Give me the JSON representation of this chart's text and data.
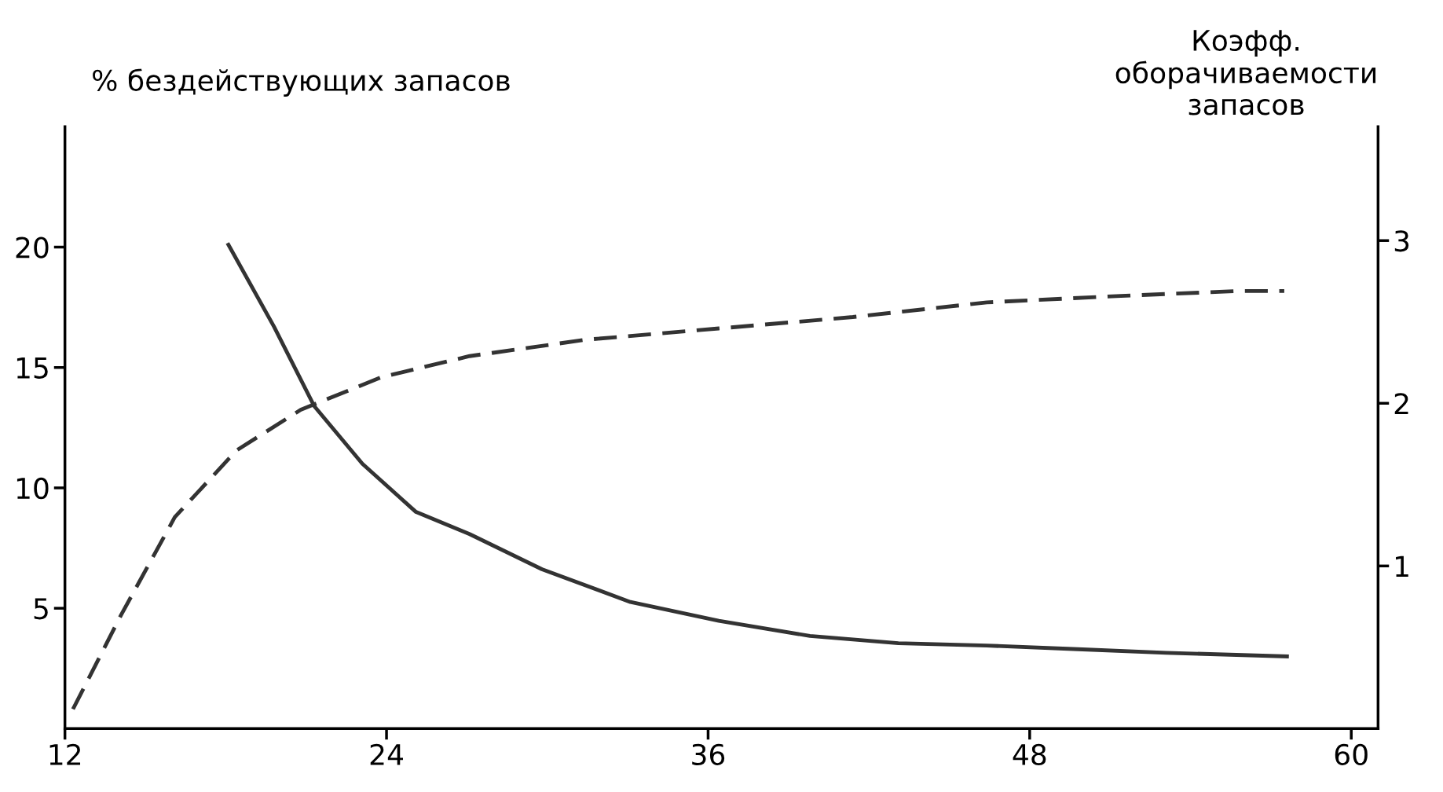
{
  "chart_data": {
    "type": "line",
    "ylabel": "% бездействующих запасов",
    "y2label": "Коэфф.\nоборачиваемости\nзапасов",
    "xlim": [
      12,
      61
    ],
    "xticks": [
      12,
      24,
      36,
      48,
      60
    ],
    "ylim": [
      0,
      25
    ],
    "yticks": [
      5,
      10,
      15,
      20
    ],
    "y2lim": [
      0,
      3.7
    ],
    "y2ticks": [
      1,
      2,
      3
    ],
    "grid": false,
    "legend": false,
    "series": [
      {
        "color": "#333333",
        "line_style": "solid",
        "x": [
          18.1,
          19.8,
          21.3,
          23.1,
          25.1,
          27.1,
          29.8,
          33.1,
          36.4,
          39.8,
          43.1,
          46.4,
          49.8,
          53.1,
          57.6
        ],
        "values": [
          20.1,
          16.7,
          13.4,
          11.0,
          9.0,
          8.08,
          6.62,
          5.26,
          4.48,
          3.85,
          3.55,
          3.45,
          3.3,
          3.15,
          3.0
        ]
      },
      {
        "color": "#333333",
        "line_style": "dashed",
        "axis": "y2",
        "x": [
          12.3,
          14.1,
          16.1,
          18.4,
          20.8,
          23.8,
          27.1,
          31.4,
          36.4,
          41.4,
          46.4,
          51.4,
          55.8,
          57.5
        ],
        "values": [
          0.12,
          0.7,
          1.3,
          1.71,
          1.96,
          2.16,
          2.29,
          2.39,
          2.46,
          2.53,
          2.62,
          2.66,
          2.69,
          2.69
        ]
      }
    ]
  }
}
